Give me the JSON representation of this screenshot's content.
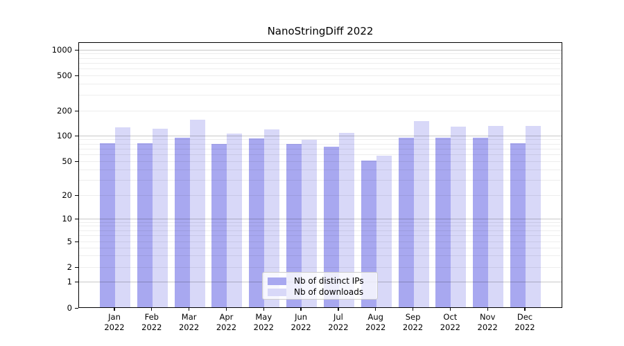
{
  "title": "NanoStringDiff 2022",
  "chart_data": {
    "type": "bar",
    "categories": [
      "Jan",
      "Feb",
      "Mar",
      "Apr",
      "May",
      "Jun",
      "Jul",
      "Aug",
      "Sep",
      "Oct",
      "Nov",
      "Dec"
    ],
    "year_label": "2022",
    "series": [
      {
        "name": "Nb of distinct IPs",
        "color": "#a8a8f0",
        "values": [
          82,
          82,
          95,
          80,
          94,
          80,
          75,
          51,
          95,
          96,
          95,
          82
        ]
      },
      {
        "name": "Nb of downloads",
        "color": "#d8d8f8",
        "values": [
          128,
          122,
          158,
          107,
          120,
          90,
          109,
          59,
          151,
          130,
          133,
          133
        ]
      }
    ],
    "title": "NanoStringDiff 2022",
    "xlabel": "",
    "ylabel": "",
    "y_ticks": [
      0,
      1,
      2,
      5,
      10,
      20,
      50,
      100,
      200,
      500,
      1000
    ],
    "ylim": [
      0,
      1000
    ],
    "y_scale": "log-like with linear 0-1 segment",
    "grid": "horizontal, major at powers of 10, minor at 2-9 per decade",
    "legend_position": "lower center"
  },
  "colors": {
    "bar_distinct_ips": "#a8a8f0",
    "bar_downloads": "#d8d8f8",
    "grid_major": "#c8c8c8",
    "grid_minor": "#ededed",
    "axis": "#000000",
    "legend_border": "#cccccc",
    "background": "#ffffff"
  }
}
